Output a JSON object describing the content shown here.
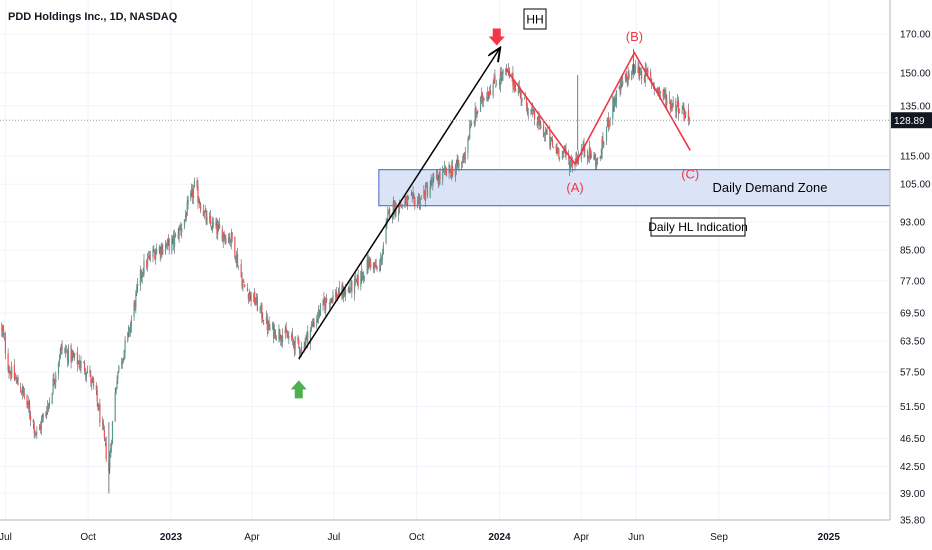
{
  "chart_data": {
    "type": "candlestick",
    "title": "PDD Holdings Inc., 1D, NASDAQ",
    "scale": "log",
    "ylim": [
      35.8,
      180
    ],
    "y_ticks": [
      {
        "value": 170,
        "label": "170.00"
      },
      {
        "value": 150,
        "label": "150.00"
      },
      {
        "value": 135,
        "label": "135.00"
      },
      {
        "value": 115,
        "label": "115.00"
      },
      {
        "value": 105,
        "label": "105.00"
      },
      {
        "value": 93,
        "label": "93.00"
      },
      {
        "value": 85,
        "label": "85.00"
      },
      {
        "value": 77,
        "label": "77.00"
      },
      {
        "value": 69.5,
        "label": "69.50"
      },
      {
        "value": 63.5,
        "label": "63.50"
      },
      {
        "value": 57.5,
        "label": "57.50"
      },
      {
        "value": 51.5,
        "label": "51.50"
      },
      {
        "value": 46.5,
        "label": "46.50"
      },
      {
        "value": 42.5,
        "label": "42.50"
      },
      {
        "value": 39,
        "label": "39.00"
      },
      {
        "value": 35.8,
        "label": "35.80"
      }
    ],
    "x_ticks": [
      {
        "date": "2022-07-01",
        "label": "Jul",
        "bold": false
      },
      {
        "date": "2022-10-01",
        "label": "Oct",
        "bold": false
      },
      {
        "date": "2023-01-01",
        "label": "2023",
        "bold": true
      },
      {
        "date": "2023-04-01",
        "label": "Apr",
        "bold": false
      },
      {
        "date": "2023-07-01",
        "label": "Jul",
        "bold": false
      },
      {
        "date": "2023-10-01",
        "label": "Oct",
        "bold": false
      },
      {
        "date": "2024-01-01",
        "label": "2024",
        "bold": true
      },
      {
        "date": "2024-04-01",
        "label": "Apr",
        "bold": false
      },
      {
        "date": "2024-06-01",
        "label": "Jun",
        "bold": false
      },
      {
        "date": "2024-09-01",
        "label": "Sep",
        "bold": false
      },
      {
        "date": "2025-01-01",
        "label": "2025",
        "bold": true
      }
    ],
    "x_range": [
      "2022-06-25",
      "2025-03-10"
    ],
    "last_price": {
      "value": 128.89,
      "label": "128.89",
      "color": "#131722"
    },
    "price_path": [
      [
        "2022-06-27",
        66
      ],
      [
        "2022-07-05",
        58
      ],
      [
        "2022-07-20",
        54
      ],
      [
        "2022-08-05",
        47
      ],
      [
        "2022-08-18",
        52
      ],
      [
        "2022-09-01",
        62
      ],
      [
        "2022-09-15",
        60
      ],
      [
        "2022-09-30",
        58
      ],
      [
        "2022-10-10",
        53
      ],
      [
        "2022-10-24",
        42
      ],
      [
        "2022-11-02",
        57
      ],
      [
        "2022-11-15",
        65
      ],
      [
        "2022-11-30",
        80
      ],
      [
        "2022-12-15",
        85
      ],
      [
        "2023-01-03",
        87
      ],
      [
        "2023-01-15",
        93
      ],
      [
        "2023-01-27",
        104
      ],
      [
        "2023-02-10",
        93
      ],
      [
        "2023-02-25",
        90
      ],
      [
        "2023-03-10",
        88
      ],
      [
        "2023-03-22",
        76
      ],
      [
        "2023-04-05",
        72
      ],
      [
        "2023-04-20",
        66
      ],
      [
        "2023-05-05",
        65
      ],
      [
        "2023-05-26",
        62
      ],
      [
        "2023-06-10",
        68
      ],
      [
        "2023-06-25",
        73
      ],
      [
        "2023-07-10",
        74
      ],
      [
        "2023-07-25",
        76
      ],
      [
        "2023-08-10",
        82
      ],
      [
        "2023-08-20",
        79
      ],
      [
        "2023-09-01",
        97
      ],
      [
        "2023-09-20",
        99
      ],
      [
        "2023-10-05",
        100
      ],
      [
        "2023-10-20",
        106
      ],
      [
        "2023-11-03",
        109
      ],
      [
        "2023-11-20",
        112
      ],
      [
        "2023-12-01",
        127
      ],
      [
        "2023-12-15",
        140
      ],
      [
        "2024-01-02",
        148
      ],
      [
        "2024-01-10",
        150
      ],
      [
        "2024-01-25",
        140
      ],
      [
        "2024-02-08",
        130
      ],
      [
        "2024-02-20",
        124
      ],
      [
        "2024-03-01",
        118
      ],
      [
        "2024-03-13",
        116
      ],
      [
        "2024-03-20",
        112
      ],
      [
        "2024-04-05",
        118
      ],
      [
        "2024-04-20",
        112
      ],
      [
        "2024-05-05",
        135
      ],
      [
        "2024-05-20",
        147
      ],
      [
        "2024-05-31",
        152
      ],
      [
        "2024-06-15",
        148
      ],
      [
        "2024-06-25",
        142
      ],
      [
        "2024-07-10",
        136
      ],
      [
        "2024-07-20",
        135
      ],
      [
        "2024-07-30",
        128.89
      ]
    ],
    "demand_zone": {
      "label": "Daily Demand Zone",
      "from_date": "2023-08-20",
      "y_low": 98,
      "y_high": 110,
      "fill": "#d5dff5",
      "stroke": "#3f63c8"
    },
    "impulse_arrow": {
      "from": [
        "2023-05-23",
        60
      ],
      "to": [
        "2024-01-01",
        162
      ],
      "color": "#000000"
    },
    "abc_lines": [
      [
        "2024-01-08",
        152
      ],
      [
        "2024-03-25",
        112
      ],
      [
        "2024-05-30",
        160
      ],
      [
        "2024-07-31",
        117
      ]
    ],
    "abc_color": "#f23645",
    "labels": {
      "A": "(A)",
      "B": "(B)",
      "C": "(C)",
      "HH": "HH",
      "hl_indication": "Daily HL Indication"
    },
    "markers": {
      "down_arrow": {
        "date": "2023-12-29",
        "price": 168,
        "color": "#f23645"
      },
      "up_arrow": {
        "date": "2023-05-23",
        "price": 56,
        "color": "#4caf50"
      }
    },
    "colors": {
      "up": "#5b9a8b",
      "down": "#ef5350",
      "wick": "#555a66",
      "grid": "#f0f3fa",
      "axis": "#b2b5be"
    }
  }
}
